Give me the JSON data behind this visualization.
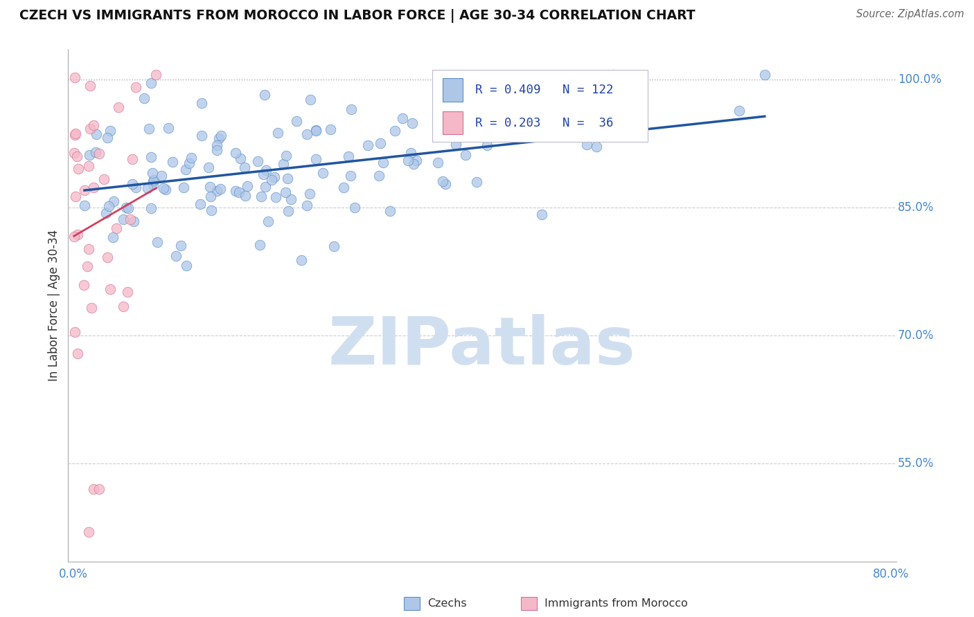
{
  "title": "CZECH VS IMMIGRANTS FROM MOROCCO IN LABOR FORCE | AGE 30-34 CORRELATION CHART",
  "source": "Source: ZipAtlas.com",
  "ylabel": "In Labor Force | Age 30-34",
  "xlim": [
    -0.005,
    0.805
  ],
  "ylim": [
    0.435,
    1.035
  ],
  "x_ticks": [
    0.0,
    0.1,
    0.2,
    0.3,
    0.4,
    0.5,
    0.6,
    0.7,
    0.8
  ],
  "x_tick_labels": [
    "0.0%",
    "",
    "",
    "",
    "",
    "",
    "",
    "",
    "80.0%"
  ],
  "y_ticks_right": [
    0.55,
    0.7,
    0.85,
    1.0
  ],
  "y_tick_labels_right": [
    "55.0%",
    "70.0%",
    "85.0%",
    "100.0%"
  ],
  "legend_line1": "R = 0.409   N = 122",
  "legend_line2": "R = 0.203   N =  36",
  "czech_color": "#aec6e8",
  "czech_edge_color": "#5b8ec4",
  "morocco_color": "#f5b8c8",
  "morocco_edge_color": "#d07090",
  "trend_czech_color": "#2155a0",
  "trend_morocco_color": "#d04060",
  "watermark_text": "ZIPatlas",
  "watermark_color": "#d0dff0",
  "dotted_line_color": "#aaaaaa",
  "dashed_line_color": "#cccccc",
  "background_color": "#ffffff",
  "scatter_size": 110,
  "scatter_alpha": 0.75,
  "seed_czech": 42,
  "seed_morocco": 77,
  "n_czech": 122,
  "n_morocco": 36,
  "r_czech": 0.409,
  "r_morocco": 0.203
}
